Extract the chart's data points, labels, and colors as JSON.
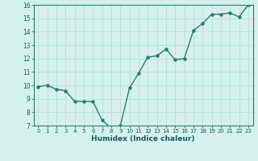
{
  "x": [
    0,
    1,
    2,
    3,
    4,
    5,
    6,
    7,
    8,
    9,
    10,
    11,
    12,
    13,
    14,
    15,
    16,
    17,
    18,
    19,
    20,
    21,
    22,
    23
  ],
  "y": [
    9.9,
    10.0,
    9.7,
    9.6,
    8.8,
    8.8,
    8.8,
    7.4,
    6.8,
    7.0,
    9.8,
    10.9,
    12.1,
    12.2,
    12.7,
    11.9,
    12.0,
    14.1,
    14.6,
    15.3,
    15.3,
    15.4,
    15.1,
    16.0
  ],
  "xlabel": "Humidex (Indice chaleur)",
  "ylim": [
    7,
    16
  ],
  "yticks": [
    7,
    8,
    9,
    10,
    11,
    12,
    13,
    14,
    15,
    16
  ],
  "xticks": [
    0,
    1,
    2,
    3,
    4,
    5,
    6,
    7,
    8,
    9,
    10,
    11,
    12,
    13,
    14,
    15,
    16,
    17,
    18,
    19,
    20,
    21,
    22,
    23
  ],
  "line_color": "#2d7a6e",
  "bg_color": "#d6f0f0",
  "grid_color": "#b8dede",
  "marker": "o",
  "marker_size": 2.2,
  "line_width": 1.0
}
